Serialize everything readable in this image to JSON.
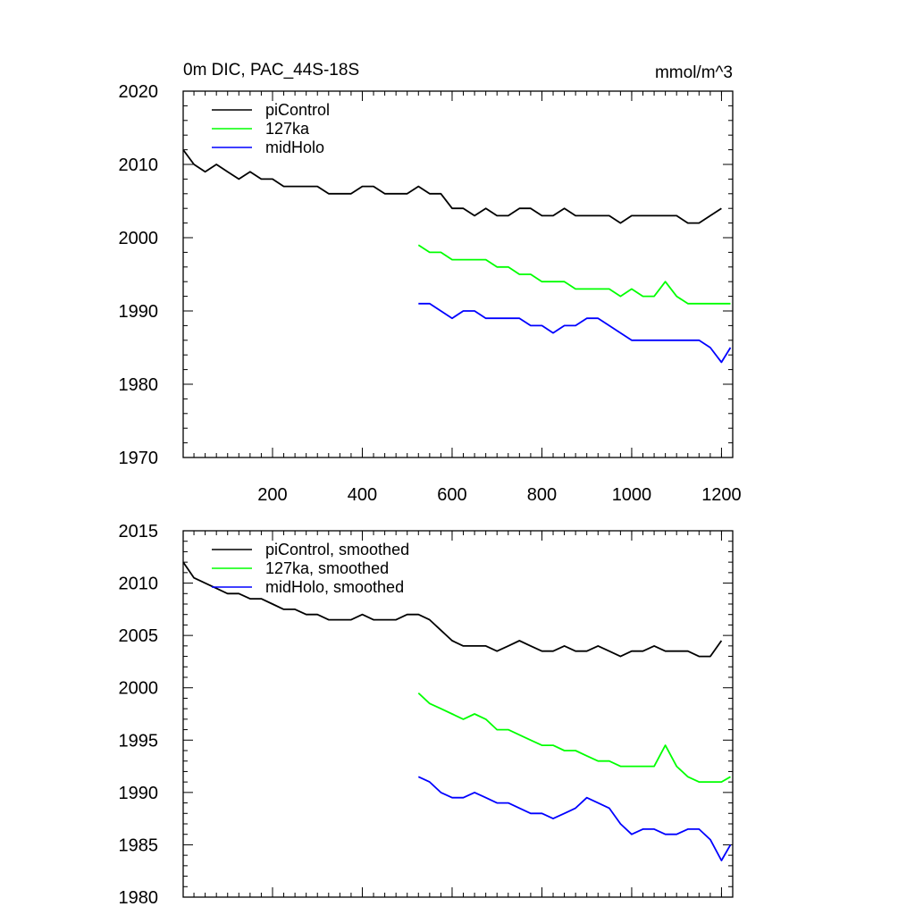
{
  "chart_data": [
    {
      "type": "line",
      "title": "0m DIC, PAC_44S-18S",
      "units_label": "mmol/m^3",
      "xlim": [
        1,
        1225
      ],
      "ylim": [
        1970,
        2020
      ],
      "xticks": [
        200,
        400,
        600,
        800,
        1000,
        1200
      ],
      "xtick_labels": [
        "200",
        "400",
        "600",
        "800",
        "1000",
        "1200"
      ],
      "yticks": [
        1970,
        1980,
        1990,
        2000,
        2010,
        2020
      ],
      "ytick_labels": [
        "1970",
        "1980",
        "1990",
        "2000",
        "2010",
        "2020"
      ],
      "legend_position": "top-left",
      "series": [
        {
          "name": "piControl",
          "color": "#000000",
          "x": [
            1,
            25,
            50,
            75,
            100,
            125,
            150,
            175,
            200,
            225,
            250,
            275,
            300,
            325,
            350,
            375,
            400,
            425,
            450,
            475,
            500,
            525,
            550,
            575,
            600,
            625,
            650,
            675,
            700,
            725,
            750,
            775,
            800,
            825,
            850,
            875,
            900,
            925,
            950,
            975,
            1000,
            1025,
            1050,
            1075,
            1100,
            1125,
            1150,
            1175,
            1200
          ],
          "values": [
            2012,
            2010,
            2009,
            2010,
            2009,
            2008,
            2009,
            2008,
            2008,
            2007,
            2007,
            2007,
            2007,
            2006,
            2006,
            2006,
            2007,
            2007,
            2006,
            2006,
            2006,
            2007,
            2006,
            2006,
            2004,
            2004,
            2003,
            2004,
            2003,
            2003,
            2004,
            2004,
            2003,
            2003,
            2004,
            2003,
            2003,
            2003,
            2003,
            2002,
            2003,
            2003,
            2003,
            2003,
            2003,
            2002,
            2002,
            2003,
            2004
          ]
        },
        {
          "name": "127ka",
          "color": "#00ff00",
          "x": [
            525,
            550,
            575,
            600,
            625,
            650,
            675,
            700,
            725,
            750,
            775,
            800,
            825,
            850,
            875,
            900,
            925,
            950,
            975,
            1000,
            1025,
            1050,
            1075,
            1100,
            1125,
            1150,
            1175,
            1200,
            1220
          ],
          "values": [
            1999,
            1998,
            1998,
            1997,
            1997,
            1997,
            1997,
            1996,
            1996,
            1995,
            1995,
            1994,
            1994,
            1994,
            1993,
            1993,
            1993,
            1993,
            1992,
            1993,
            1992,
            1992,
            1994,
            1992,
            1991,
            1991,
            1991,
            1991,
            1991
          ]
        },
        {
          "name": "midHolo",
          "color": "#0000ff",
          "x": [
            525,
            550,
            575,
            600,
            625,
            650,
            675,
            700,
            725,
            750,
            775,
            800,
            825,
            850,
            875,
            900,
            925,
            950,
            975,
            1000,
            1025,
            1050,
            1075,
            1100,
            1125,
            1150,
            1175,
            1200,
            1220
          ],
          "values": [
            1991,
            1991,
            1990,
            1989,
            1990,
            1990,
            1989,
            1989,
            1989,
            1989,
            1988,
            1988,
            1987,
            1988,
            1988,
            1989,
            1989,
            1988,
            1987,
            1986,
            1986,
            1986,
            1986,
            1986,
            1986,
            1986,
            1985,
            1983,
            1985
          ]
        }
      ]
    },
    {
      "type": "line",
      "xlim": [
        1,
        1225
      ],
      "ylim": [
        1980,
        2015
      ],
      "xticks": [
        200,
        400,
        600,
        800,
        1000,
        1200
      ],
      "yticks": [
        1980,
        1985,
        1990,
        1995,
        2000,
        2005,
        2010,
        2015
      ],
      "ytick_labels": [
        "1980",
        "1985",
        "1990",
        "1995",
        "2000",
        "2005",
        "2010",
        "2015"
      ],
      "legend_position": "top-left",
      "series": [
        {
          "name": "piControl, smoothed",
          "color": "#000000",
          "x": [
            1,
            25,
            50,
            75,
            100,
            125,
            150,
            175,
            200,
            225,
            250,
            275,
            300,
            325,
            350,
            375,
            400,
            425,
            450,
            475,
            500,
            525,
            550,
            575,
            600,
            625,
            650,
            675,
            700,
            725,
            750,
            775,
            800,
            825,
            850,
            875,
            900,
            925,
            950,
            975,
            1000,
            1025,
            1050,
            1075,
            1100,
            1125,
            1150,
            1175,
            1200
          ],
          "values": [
            2012,
            2010.5,
            2010,
            2009.5,
            2009,
            2009,
            2008.5,
            2008.5,
            2008,
            2007.5,
            2007.5,
            2007,
            2007,
            2006.5,
            2006.5,
            2006.5,
            2007,
            2006.5,
            2006.5,
            2006.5,
            2007,
            2007,
            2006.5,
            2005.5,
            2004.5,
            2004,
            2004,
            2004,
            2003.5,
            2004,
            2004.5,
            2004,
            2003.5,
            2003.5,
            2004,
            2003.5,
            2003.5,
            2004,
            2003.5,
            2003,
            2003.5,
            2003.5,
            2004,
            2003.5,
            2003.5,
            2003.5,
            2003,
            2003,
            2004.5
          ]
        },
        {
          "name": "127ka, smoothed",
          "color": "#00ff00",
          "x": [
            525,
            550,
            575,
            600,
            625,
            650,
            675,
            700,
            725,
            750,
            775,
            800,
            825,
            850,
            875,
            900,
            925,
            950,
            975,
            1000,
            1025,
            1050,
            1075,
            1100,
            1125,
            1150,
            1175,
            1200,
            1220
          ],
          "values": [
            1999.5,
            1998.5,
            1998,
            1997.5,
            1997,
            1997.5,
            1997,
            1996,
            1996,
            1995.5,
            1995,
            1994.5,
            1994.5,
            1994,
            1994,
            1993.5,
            1993,
            1993,
            1992.5,
            1992.5,
            1992.5,
            1992.5,
            1994.5,
            1992.5,
            1991.5,
            1991,
            1991,
            1991,
            1991.5
          ]
        },
        {
          "name": "midHolo, smoothed",
          "color": "#0000ff",
          "x": [
            525,
            550,
            575,
            600,
            625,
            650,
            675,
            700,
            725,
            750,
            775,
            800,
            825,
            850,
            875,
            900,
            925,
            950,
            975,
            1000,
            1025,
            1050,
            1075,
            1100,
            1125,
            1150,
            1175,
            1200,
            1220
          ],
          "values": [
            1991.5,
            1991,
            1990,
            1989.5,
            1989.5,
            1990,
            1989.5,
            1989,
            1989,
            1988.5,
            1988,
            1988,
            1987.5,
            1988,
            1988.5,
            1989.5,
            1989,
            1988.5,
            1987,
            1986,
            1986.5,
            1986.5,
            1986,
            1986,
            1986.5,
            1986.5,
            1985.5,
            1983.5,
            1985
          ]
        }
      ]
    }
  ]
}
